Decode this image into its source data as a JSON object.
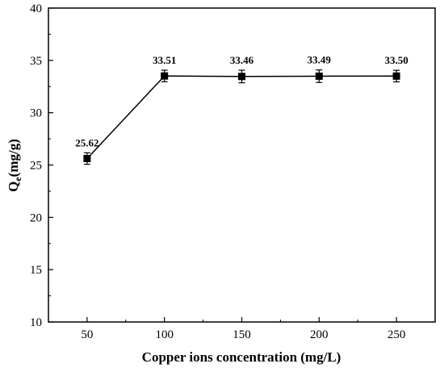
{
  "chart_data": {
    "type": "line",
    "xlabel": "Copper ions concentration (mg/L)",
    "ylabel_main": "Q",
    "ylabel_sub": "e",
    "ylabel_rest": "(mg/g)",
    "xlim": [
      25,
      275
    ],
    "ylim": [
      10,
      40
    ],
    "x_ticks": [
      50,
      100,
      150,
      200,
      250
    ],
    "y_ticks": [
      10,
      15,
      20,
      25,
      30,
      35,
      40
    ],
    "grid": false,
    "marker": "square",
    "series": [
      {
        "x": [
          50,
          100,
          150,
          200,
          250
        ],
        "y": [
          25.62,
          33.51,
          33.46,
          33.49,
          33.5
        ],
        "error": [
          0.55,
          0.55,
          0.6,
          0.6,
          0.55
        ],
        "labels": [
          "25.62",
          "33.51",
          "33.46",
          "33.49",
          "33.50"
        ]
      }
    ]
  }
}
